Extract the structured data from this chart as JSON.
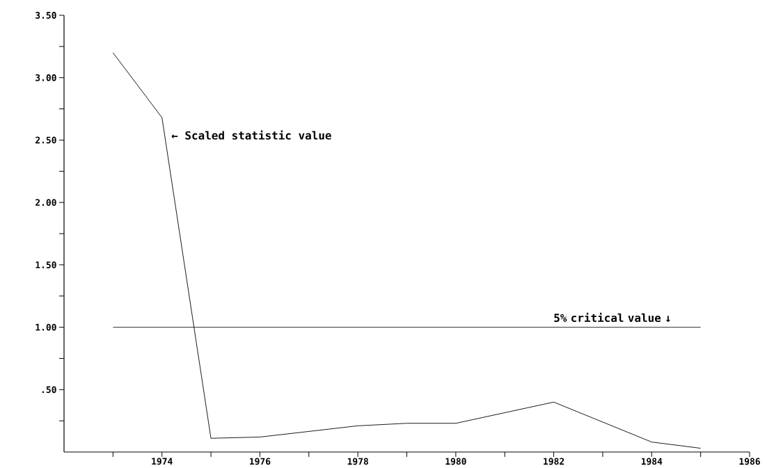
{
  "chart_data": {
    "type": "line",
    "x": [
      1973,
      1974,
      1975,
      1976,
      1978,
      1979,
      1980,
      1982,
      1984,
      1985
    ],
    "series": [
      {
        "color": "#000000",
        "values": [
          3.2,
          2.68,
          0.11,
          0.12,
          0.21,
          0.23,
          0.23,
          0.4,
          0.08,
          0.03
        ]
      }
    ],
    "xlim": [
      1972,
      1986
    ],
    "xticks": [
      {
        "value": 1973,
        "label": null
      },
      1974,
      {
        "value": 1975,
        "label": null
      },
      1976,
      {
        "value": 1977,
        "label": null
      },
      1978,
      {
        "value": 1979,
        "label": null
      },
      1980,
      {
        "value": 1981,
        "label": null
      },
      1982,
      {
        "value": 1983,
        "label": null
      },
      1984,
      {
        "value": 1985,
        "label": null
      },
      1986
    ],
    "ylim": [
      0,
      3.5
    ],
    "yticks": [
      {
        "value": 0.25,
        "label": null
      },
      {
        "value": 0.5,
        "label": ".50"
      },
      {
        "value": 0.75,
        "label": null
      },
      {
        "value": 1,
        "label": "1.00"
      },
      {
        "value": 1.25,
        "label": null
      },
      {
        "value": 1.5,
        "label": "1.50"
      },
      {
        "value": 1.75,
        "label": null
      },
      {
        "value": 2,
        "label": "2.00"
      },
      {
        "value": 2.25,
        "label": null
      },
      {
        "value": 2.5,
        "label": "2.50"
      },
      {
        "value": 2.75,
        "label": null
      },
      {
        "value": 3,
        "label": "3.00"
      },
      {
        "value": 3.25,
        "label": null
      },
      {
        "value": 3.5,
        "label": "3.50"
      }
    ],
    "ref_lines": [
      {
        "axis": "y",
        "value": 1,
        "color": "#000000"
      }
    ],
    "annotations": [
      {
        "text": "← Scaled statistic value",
        "x": 1974,
        "y": 2.68
      },
      {
        "text": "5% critical value ↓",
        "x": 1983.2,
        "y": 1
      }
    ],
    "grid": false,
    "marker": "none",
    "line_style": "solid"
  }
}
